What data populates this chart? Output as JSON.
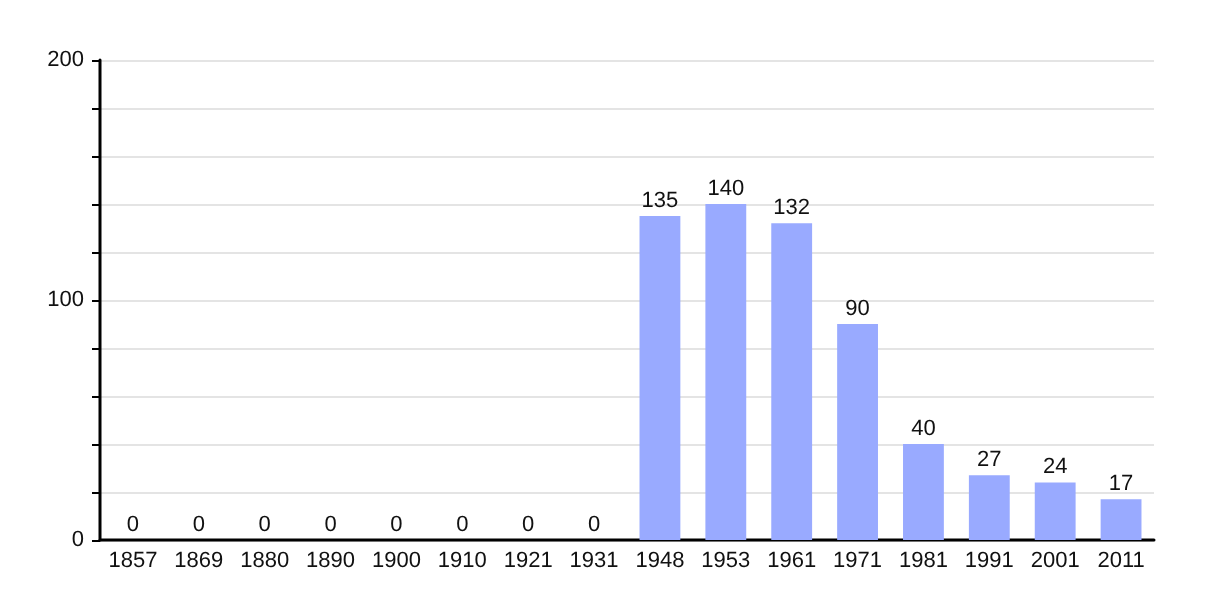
{
  "chart_data": {
    "type": "bar",
    "categories": [
      "1857",
      "1869",
      "1880",
      "1890",
      "1900",
      "1910",
      "1921",
      "1931",
      "1948",
      "1953",
      "1961",
      "1971",
      "1981",
      "1991",
      "2001",
      "2011"
    ],
    "values": [
      0,
      0,
      0,
      0,
      0,
      0,
      0,
      0,
      135,
      140,
      132,
      90,
      40,
      27,
      24,
      17
    ],
    "color": "#99aaff",
    "ylim": [
      0,
      200
    ],
    "yticks": [
      0,
      {
        "value": 20,
        "label": null
      },
      {
        "value": 40,
        "label": null
      },
      {
        "value": 60,
        "label": null
      },
      {
        "value": 80,
        "label": null
      },
      100,
      {
        "value": 120,
        "label": null
      },
      {
        "value": 140,
        "label": null
      },
      {
        "value": 160,
        "label": null
      },
      {
        "value": 180,
        "label": null
      },
      200
    ],
    "grid": "y",
    "data_labels": true
  }
}
